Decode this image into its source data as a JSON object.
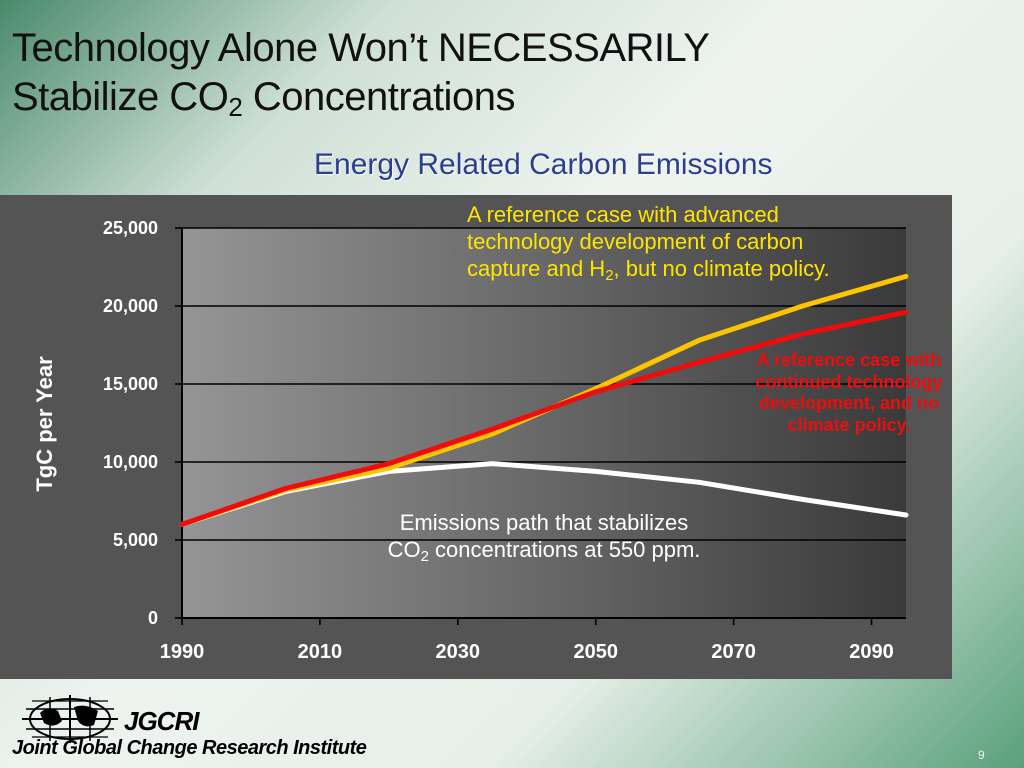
{
  "slide": {
    "title_line1": "Technology Alone Won’t NECESSARILY",
    "title_line2_pre": "Stabilize CO",
    "title_line2_sub": "2",
    "title_line2_post": " Concentrations",
    "page_number": "9"
  },
  "footer": {
    "abbr": "JGCRI",
    "name": "Joint Global Change Research Institute",
    "logo_icon": "globe-grid-icon"
  },
  "annotations": {
    "yellow_pre": "A reference case with advanced technology development of carbon capture and H",
    "yellow_sub": "2",
    "yellow_post": ", but no climate policy.",
    "red": "A reference case with continued technology development, and no climate policy.",
    "white_line1": "Emissions path that stabilizes",
    "white_line2_pre": "CO",
    "white_line2_sub": "2",
    "white_line2_post": " concentrations at 550 ppm."
  },
  "chart_data": {
    "type": "line",
    "title": "Energy Related Carbon Emissions",
    "xlabel": "",
    "ylabel": "TgC per Year",
    "xlim": [
      1990,
      2095
    ],
    "ylim": [
      0,
      25000
    ],
    "x_ticks": [
      "1990",
      "2010",
      "2030",
      "2050",
      "2070",
      "2090"
    ],
    "y_ticks": [
      "0",
      "5,000",
      "10,000",
      "15,000",
      "20,000",
      "25,000"
    ],
    "grid": "horizontal",
    "colors": {
      "plot_bg_left": "#959595",
      "plot_bg_right": "#3a3a3a",
      "frame_bg": "#545454",
      "white_series": "#ffffff",
      "yellow_series": "#ffc400",
      "red_series": "#ee0d0d"
    },
    "series": [
      {
        "color": "#ffffff",
        "x": [
          1990,
          2005,
          2020,
          2035,
          2050,
          2065,
          2080,
          2095
        ],
        "y": [
          6000,
          8100,
          9400,
          9900,
          9400,
          8700,
          7600,
          6600
        ]
      },
      {
        "color": "#ffc400",
        "x": [
          1990,
          2005,
          2020,
          2035,
          2050,
          2065,
          2080,
          2095
        ],
        "y": [
          6000,
          8200,
          9600,
          11800,
          14700,
          17800,
          20000,
          21900
        ]
      },
      {
        "color": "#ee0d0d",
        "x": [
          1990,
          2005,
          2020,
          2035,
          2050,
          2065,
          2080,
          2095
        ],
        "y": [
          6000,
          8300,
          9900,
          12100,
          14500,
          16400,
          18200,
          19600
        ]
      }
    ]
  }
}
